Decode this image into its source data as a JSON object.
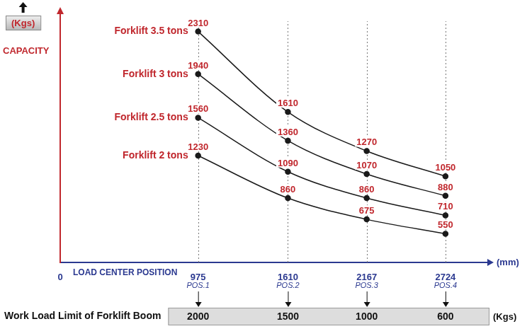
{
  "chart_data": {
    "type": "line",
    "y_label": "CAPACITY",
    "y_unit": "(Kgs)",
    "x_label": "LOAD CENTER POSITION",
    "x_unit": "(mm)",
    "x": [
      975,
      1610,
      2167,
      2724
    ],
    "x_point_labels": [
      "POS.1",
      "POS.2",
      "POS.3",
      "POS.4"
    ],
    "series": [
      {
        "name": "Forklift 3.5 tons",
        "color": "#1a1a1a",
        "values": [
          2310,
          1610,
          1270,
          1050
        ]
      },
      {
        "name": "Forklift 3 tons",
        "color": "#1a1a1a",
        "values": [
          1940,
          1360,
          1070,
          880
        ]
      },
      {
        "name": "Forklift 2.5 tons",
        "color": "#1a1a1a",
        "values": [
          1560,
          1090,
          860,
          710
        ]
      },
      {
        "name": "Forklift 2 tons",
        "color": "#1a1a1a",
        "values": [
          1230,
          860,
          675,
          550
        ]
      }
    ],
    "xlim": [
      0,
      3000
    ],
    "xticks": [
      0,
      975,
      1610,
      2167,
      2724
    ],
    "ylim": [
      300,
      2400
    ],
    "tick_labels": "x",
    "grid": "x",
    "data_labels": true,
    "marker": "circle",
    "work_load_limit": {
      "title": "Work Load Limit of Forklift Boom",
      "values": [
        2000,
        1500,
        1000,
        600
      ],
      "unit": "(Kgs)"
    }
  }
}
